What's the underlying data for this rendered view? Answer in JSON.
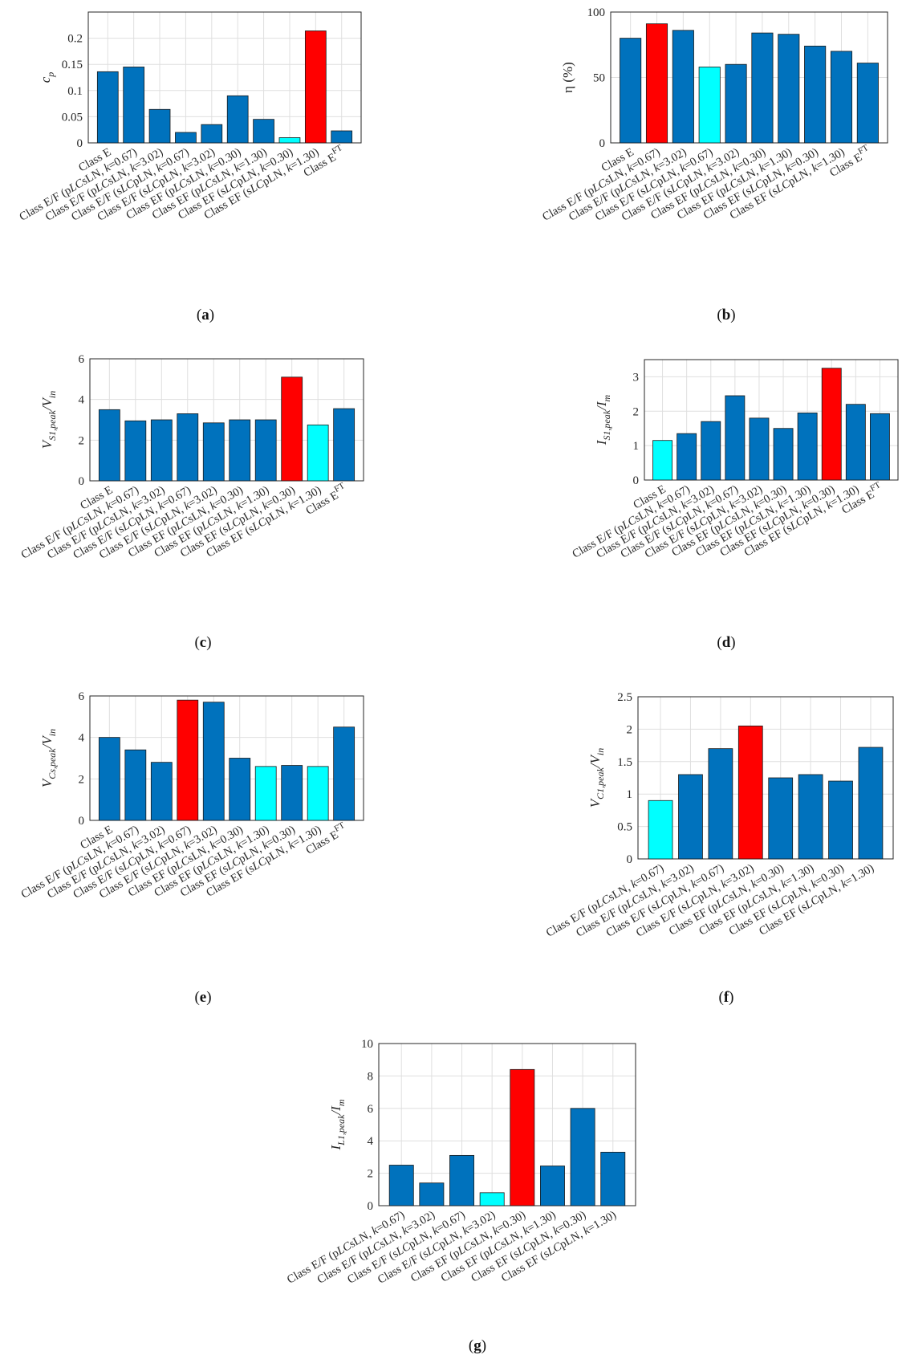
{
  "colors": {
    "default": "#0072bd",
    "best": "#ff0000",
    "worst": "#00ffff",
    "grid": "#dfdfdf",
    "axis": "#262626"
  },
  "chart_data": [
    {
      "panel": "a",
      "type": "bar",
      "ylabel": "c",
      "ylabel_sub": "p",
      "ylim": [
        0,
        0.25
      ],
      "yticks": [
        "0",
        "0.05",
        "0.1",
        "0.15",
        "0.2"
      ],
      "ytick_values": [
        0,
        0.05,
        0.1,
        0.15,
        0.2
      ],
      "categories": [
        "Class E",
        "Class E/F (pLCsLN, k=0.67)",
        "Class E/F (pLCsLN, k=3.02)",
        "Class E/F (sLCpLN, k=0.67)",
        "Class E/F (sLCpLN, k=3.02)",
        "Class EF (pLCsLN, k=0.30)",
        "Class EF (pLCsLN, k=1.30)",
        "Class EF (sLCpLN, k=0.30)",
        "Class EF (sLCpLN, k=1.30)",
        "Class E^FT"
      ],
      "values": [
        0.136,
        0.145,
        0.064,
        0.02,
        0.035,
        0.09,
        0.045,
        0.01,
        0.214,
        0.023
      ],
      "highlight": {
        "best": 8,
        "worst": 7
      }
    },
    {
      "panel": "b",
      "type": "bar",
      "ylabel": "η (%)",
      "ylabel_sub": "",
      "ylim": [
        0,
        100
      ],
      "yticks": [
        "0",
        "50",
        "100"
      ],
      "ytick_values": [
        0,
        50,
        100
      ],
      "categories": [
        "Class E",
        "Class E/F (pLCsLN, k=0.67)",
        "Class E/F (pLCsLN, k=3.02)",
        "Class E/F (sLCpLN, k=0.67)",
        "Class E/F (sLCpLN, k=3.02)",
        "Class EF (pLCsLN, k=0.30)",
        "Class EF (pLCsLN, k=1.30)",
        "Class EF (sLCpLN, k=0.30)",
        "Class EF (sLCpLN, k=1.30)",
        "Class E^FT"
      ],
      "values": [
        80,
        91,
        86,
        58,
        60,
        84,
        83,
        74,
        70,
        61
      ],
      "highlight": {
        "best": 1,
        "worst": 3
      }
    },
    {
      "panel": "c",
      "type": "bar",
      "ylabel": "V",
      "ylabel_sub": "S1,peak",
      "ylabel_tail": "/V",
      "ylabel_tail_sub": "in",
      "ylim": [
        0,
        6
      ],
      "yticks": [
        "0",
        "2",
        "4",
        "6"
      ],
      "ytick_values": [
        0,
        2,
        4,
        6
      ],
      "categories": [
        "Class E",
        "Class E/F (pLCsLN, k=0.67)",
        "Class E/F (pLCsLN, k=3.02)",
        "Class E/F (sLCpLN, k=0.67)",
        "Class E/F (sLCpLN, k=3.02)",
        "Class EF (pLCsLN, k=0.30)",
        "Class EF (pLCsLN, k=1.30)",
        "Class EF (sLCpLN, k=0.30)",
        "Class EF (sLCpLN, k=1.30)",
        "Class E^FT"
      ],
      "values": [
        3.5,
        2.95,
        3.0,
        3.3,
        2.85,
        3.0,
        3.0,
        5.1,
        2.75,
        3.55
      ],
      "highlight": {
        "best": 7,
        "worst": 8
      }
    },
    {
      "panel": "d",
      "type": "bar",
      "ylabel": "I",
      "ylabel_sub": "S1,peak",
      "ylabel_tail": "/I",
      "ylabel_tail_sub": "m",
      "ylim": [
        0,
        3.5
      ],
      "yticks": [
        "0",
        "1",
        "2",
        "3"
      ],
      "ytick_values": [
        0,
        1,
        2,
        3
      ],
      "categories": [
        "Class E",
        "Class E/F (pLCsLN, k=0.67)",
        "Class E/F (pLCsLN, k=3.02)",
        "Class E/F (sLCpLN, k=0.67)",
        "Class E/F (sLCpLN, k=3.02)",
        "Class EF (pLCsLN, k=0.30)",
        "Class EF (pLCsLN, k=1.30)",
        "Class EF (sLCpLN, k=0.30)",
        "Class EF (sLCpLN, k=1.30)",
        "Class E^FT"
      ],
      "values": [
        1.15,
        1.35,
        1.7,
        2.45,
        1.8,
        1.5,
        1.95,
        3.25,
        2.2,
        1.93
      ],
      "highlight": {
        "best": 7,
        "worst": 0
      }
    },
    {
      "panel": "e",
      "type": "bar",
      "ylabel": "V",
      "ylabel_sub": "Cs,peak",
      "ylabel_tail": "/V",
      "ylabel_tail_sub": "in",
      "ylim": [
        0,
        6
      ],
      "yticks": [
        "0",
        "2",
        "4",
        "6"
      ],
      "ytick_values": [
        0,
        2,
        4,
        6
      ],
      "categories": [
        "Class E",
        "Class E/F (pLCsLN, k=0.67)",
        "Class E/F (pLCsLN, k=3.02)",
        "Class E/F (sLCpLN, k=0.67)",
        "Class E/F (sLCpLN, k=3.02)",
        "Class EF (pLCsLN, k=0.30)",
        "Class EF (pLCsLN, k=1.30)",
        "Class EF (sLCpLN, k=0.30)",
        "Class EF (sLCpLN, k=1.30)",
        "Class E^FT"
      ],
      "values": [
        4.0,
        3.4,
        2.8,
        5.8,
        5.7,
        3.0,
        2.6,
        2.65,
        2.6,
        4.5
      ],
      "highlight": {
        "best": 3,
        "worst": [
          6,
          8
        ]
      }
    },
    {
      "panel": "f",
      "type": "bar",
      "ylabel": "V",
      "ylabel_sub": "C1,peak",
      "ylabel_tail": "/V",
      "ylabel_tail_sub": "in",
      "ylim": [
        0,
        2.5
      ],
      "yticks": [
        "0",
        "0.5",
        "1",
        "1.5",
        "2",
        "2.5"
      ],
      "ytick_values": [
        0,
        0.5,
        1,
        1.5,
        2,
        2.5
      ],
      "categories": [
        "Class E/F (pLCsLN, k=0.67)",
        "Class E/F (pLCsLN, k=3.02)",
        "Class E/F (sLCpLN, k=0.67)",
        "Class E/F (sLCpLN, k=3.02)",
        "Class EF (pLCsLN, k=0.30)",
        "Class EF (pLCsLN, k=1.30)",
        "Class EF (sLCpLN, k=0.30)",
        "Class EF (sLCpLN, k=1.30)"
      ],
      "values": [
        0.9,
        1.3,
        1.7,
        2.05,
        1.25,
        1.3,
        1.2,
        1.72
      ],
      "highlight": {
        "best": 3,
        "worst": 0
      }
    },
    {
      "panel": "g",
      "type": "bar",
      "ylabel": "I",
      "ylabel_sub": "L1,peak",
      "ylabel_tail": "/I",
      "ylabel_tail_sub": "m",
      "ylim": [
        0,
        10
      ],
      "yticks": [
        "0",
        "2",
        "4",
        "6",
        "8",
        "10"
      ],
      "ytick_values": [
        0,
        2,
        4,
        6,
        8,
        10
      ],
      "categories": [
        "Class E/F (pLCsLN, k=0.67)",
        "Class E/F (pLCsLN, k=3.02)",
        "Class E/F (sLCpLN, k=0.67)",
        "Class E/F (sLCpLN, k=3.02)",
        "Class EF (pLCsLN, k=0.30)",
        "Class EF (pLCsLN, k=1.30)",
        "Class EF (sLCpLN, k=0.30)",
        "Class EF (sLCpLN, k=1.30)"
      ],
      "values": [
        2.5,
        1.4,
        3.1,
        0.8,
        8.4,
        2.45,
        6.0,
        3.3
      ],
      "highlight": {
        "best": 4,
        "worst": 3
      }
    }
  ],
  "panel_labels": [
    "(a)",
    "(b)",
    "(c)",
    "(d)",
    "(e)",
    "(f)",
    "(g)"
  ]
}
